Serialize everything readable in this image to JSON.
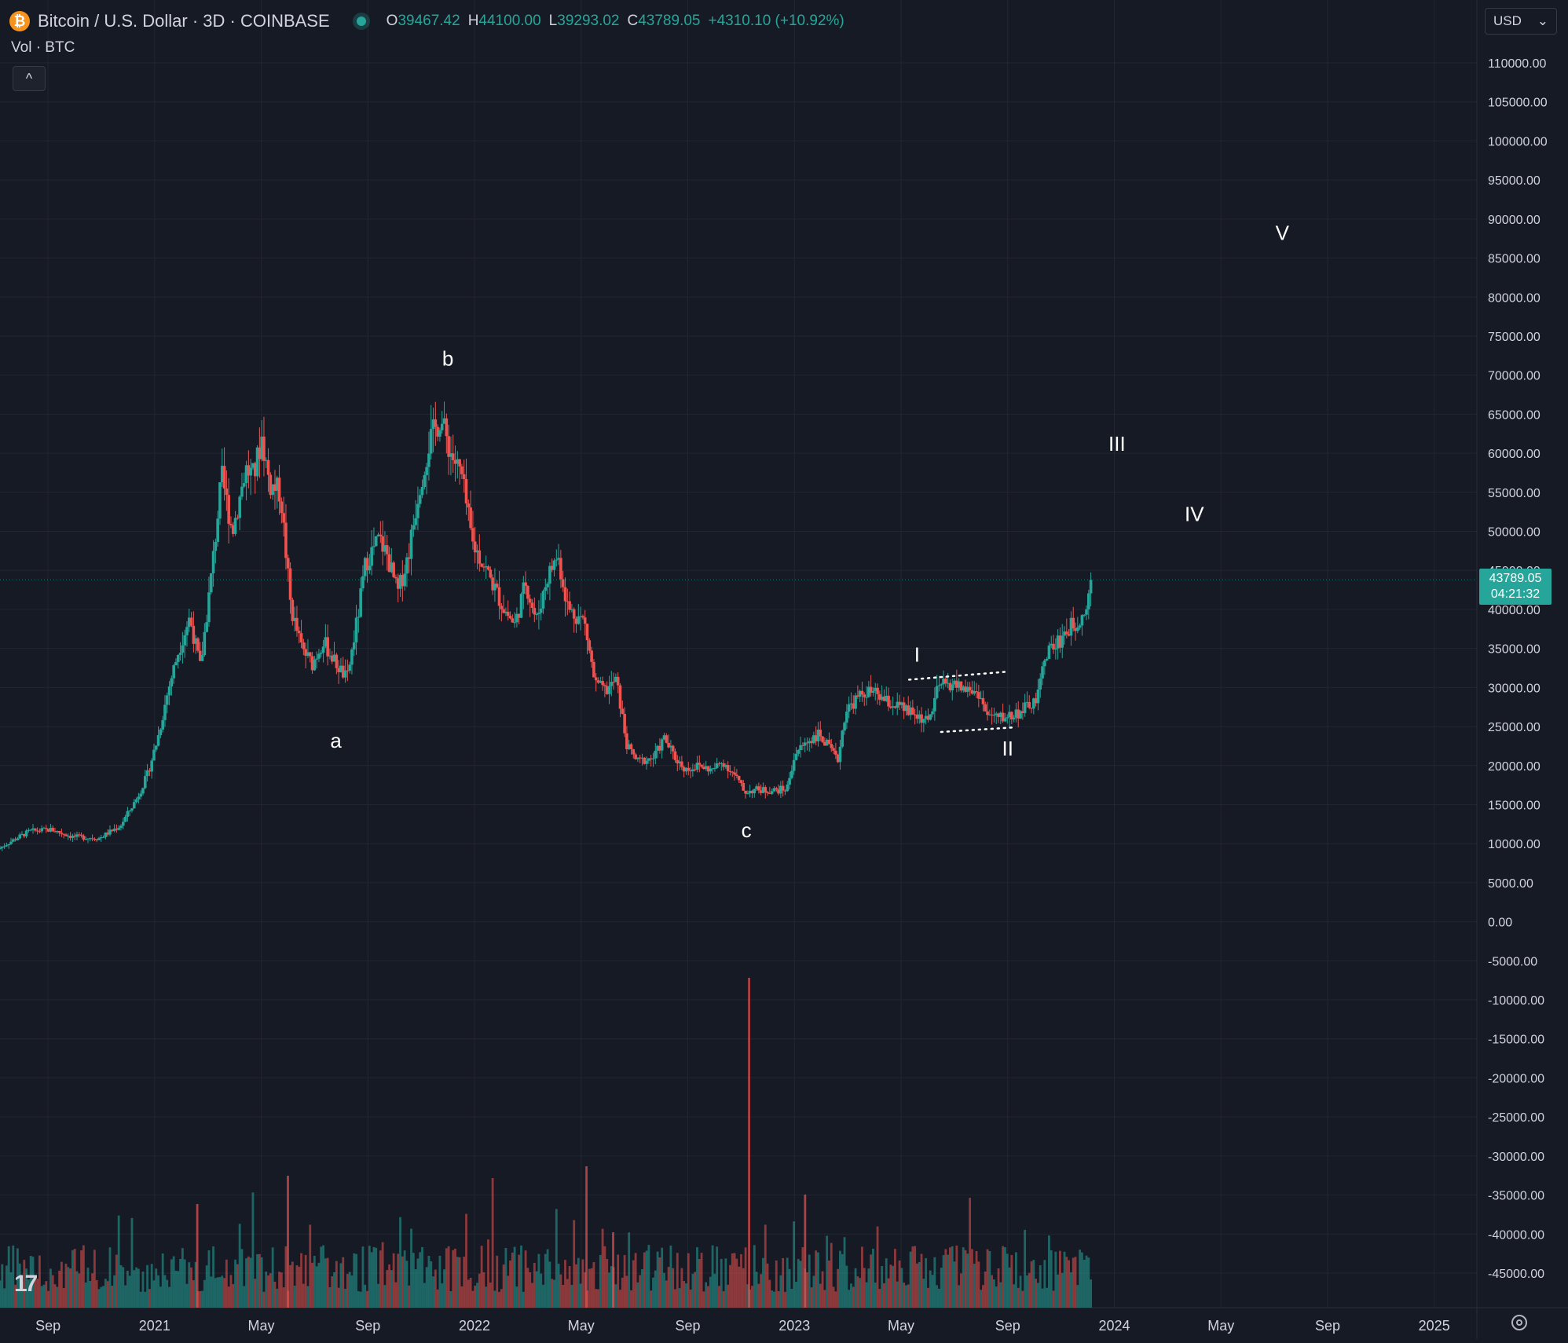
{
  "header": {
    "coin_symbol": "₿",
    "title": "Bitcoin / U.S. Dollar · 3D · COINBASE",
    "ohlc": [
      {
        "key": "O",
        "value": "39467.42"
      },
      {
        "key": "H",
        "value": "44100.00"
      },
      {
        "key": "L",
        "value": "39293.02"
      },
      {
        "key": "C",
        "value": "43789.05"
      }
    ],
    "change": "+4310.10 (+10.92%)"
  },
  "volume_label": "Vol · BTC",
  "collapse_symbol": "^",
  "currency": {
    "value": "USD",
    "chevron": "⌄"
  },
  "price_tag": {
    "price": "43789.05",
    "countdown": "04:21:32"
  },
  "logo_text": "17",
  "colors": {
    "up": "#26a69a",
    "down": "#ef5350",
    "background": "#161a25",
    "grid": "#232632",
    "text": "#d1d4dc"
  },
  "chart_data": {
    "type": "candlestick",
    "y_axis": {
      "min": -47500,
      "max": 112000,
      "ticks": [
        110000,
        105000,
        100000,
        95000,
        90000,
        85000,
        80000,
        75000,
        70000,
        65000,
        60000,
        55000,
        50000,
        45000,
        40000,
        35000,
        30000,
        25000,
        20000,
        15000,
        10000,
        5000,
        0,
        -5000,
        -10000,
        -15000,
        -20000,
        -25000,
        -30000,
        -35000,
        -40000,
        -45000
      ]
    },
    "x_axis": {
      "ticks": [
        {
          "label": "Sep",
          "x": 0
        },
        {
          "label": "2021",
          "x": 4
        },
        {
          "label": "May",
          "x": 8
        },
        {
          "label": "Sep",
          "x": 12
        },
        {
          "label": "2022",
          "x": 16
        },
        {
          "label": "May",
          "x": 20
        },
        {
          "label": "Sep",
          "x": 24
        },
        {
          "label": "2023",
          "x": 28
        },
        {
          "label": "May",
          "x": 32
        },
        {
          "label": "Sep",
          "x": 36
        },
        {
          "label": "2024",
          "x": 40
        },
        {
          "label": "May",
          "x": 44
        },
        {
          "label": "Sep",
          "x": 48
        },
        {
          "label": "2025",
          "x": 52
        }
      ],
      "range": [
        -1.8,
        53.6
      ]
    },
    "last_price": 43789.05,
    "price_path": [
      [
        -1.8,
        9300
      ],
      [
        -1.2,
        10500
      ],
      [
        -0.6,
        11600
      ],
      [
        0.2,
        11800
      ],
      [
        1.0,
        10900
      ],
      [
        2.0,
        10700
      ],
      [
        2.8,
        12300
      ],
      [
        3.4,
        15700
      ],
      [
        3.8,
        18700
      ],
      [
        4.2,
        23500
      ],
      [
        4.6,
        29800
      ],
      [
        5.0,
        35000
      ],
      [
        5.4,
        39000
      ],
      [
        5.8,
        32500
      ],
      [
        6.2,
        44000
      ],
      [
        6.6,
        57000
      ],
      [
        7.0,
        50000
      ],
      [
        7.5,
        58000
      ],
      [
        7.8,
        57000
      ],
      [
        8.1,
        62000
      ],
      [
        8.4,
        56000
      ],
      [
        8.8,
        55000
      ],
      [
        9.2,
        40000
      ],
      [
        9.6,
        35000
      ],
      [
        10.0,
        33000
      ],
      [
        10.4,
        36000
      ],
      [
        10.8,
        33500
      ],
      [
        11.3,
        31000
      ],
      [
        11.7,
        39000
      ],
      [
        12.0,
        46000
      ],
      [
        12.5,
        49000
      ],
      [
        12.8,
        47000
      ],
      [
        13.2,
        42000
      ],
      [
        13.6,
        47000
      ],
      [
        14.0,
        55500
      ],
      [
        14.4,
        61500
      ],
      [
        14.8,
        64500
      ],
      [
        15.2,
        60000
      ],
      [
        15.6,
        57000
      ],
      [
        16.0,
        48500
      ],
      [
        16.4,
        46000
      ],
      [
        16.8,
        43000
      ],
      [
        17.2,
        40000
      ],
      [
        17.6,
        38000
      ],
      [
        18.0,
        43500
      ],
      [
        18.4,
        38500
      ],
      [
        18.8,
        44000
      ],
      [
        19.2,
        47000
      ],
      [
        19.6,
        40000
      ],
      [
        20.2,
        38500
      ],
      [
        20.6,
        30500
      ],
      [
        21.0,
        29500
      ],
      [
        21.4,
        31000
      ],
      [
        21.8,
        22500
      ],
      [
        22.2,
        20500
      ],
      [
        22.8,
        21000
      ],
      [
        23.2,
        23500
      ],
      [
        23.6,
        21000
      ],
      [
        24.0,
        19500
      ],
      [
        24.5,
        20000
      ],
      [
        25.0,
        19400
      ],
      [
        25.4,
        20500
      ],
      [
        25.9,
        18500
      ],
      [
        26.2,
        16600
      ],
      [
        26.6,
        16900
      ],
      [
        27.3,
        16800
      ],
      [
        27.8,
        17000
      ],
      [
        28.1,
        21500
      ],
      [
        28.6,
        23200
      ],
      [
        29.0,
        24000
      ],
      [
        29.4,
        22200
      ],
      [
        29.7,
        20500
      ],
      [
        30.0,
        27000
      ],
      [
        30.4,
        28500
      ],
      [
        30.8,
        29500
      ],
      [
        31.2,
        29000
      ],
      [
        31.6,
        28000
      ],
      [
        32.0,
        27500
      ],
      [
        32.4,
        26800
      ],
      [
        32.8,
        26200
      ],
      [
        33.1,
        25500
      ],
      [
        33.5,
        30200
      ],
      [
        34.0,
        30500
      ],
      [
        34.5,
        29800
      ],
      [
        35.0,
        29300
      ],
      [
        35.3,
        26400
      ],
      [
        35.8,
        26100
      ],
      [
        36.3,
        26500
      ],
      [
        36.8,
        27400
      ],
      [
        37.2,
        28500
      ],
      [
        37.5,
        34500
      ],
      [
        37.9,
        35500
      ],
      [
        38.3,
        37300
      ],
      [
        38.7,
        38500
      ],
      [
        39.0,
        40000
      ],
      [
        39.2,
        43789.05
      ]
    ],
    "volume": {
      "axis_top": 113,
      "axis_bottom": 0
    },
    "annotations": [
      {
        "text": "a",
        "x": 10.8,
        "y": 22300
      },
      {
        "text": "b",
        "x": 15.0,
        "y": 71200
      },
      {
        "text": "c",
        "x": 26.2,
        "y": 10800
      },
      {
        "text": "I",
        "x": 32.6,
        "y": 33300
      },
      {
        "text": "II",
        "x": 36.0,
        "y": 21300
      },
      {
        "text": "III",
        "x": 40.1,
        "y": 60300
      },
      {
        "text": "IV",
        "x": 43.0,
        "y": 51300
      },
      {
        "text": "V",
        "x": 46.3,
        "y": 87300
      }
    ],
    "channel_lines": [
      {
        "from": [
          32.3,
          31000
        ],
        "to": [
          35.9,
          32000
        ]
      },
      {
        "from": [
          33.5,
          24300
        ],
        "to": [
          36.3,
          24900
        ]
      }
    ]
  }
}
